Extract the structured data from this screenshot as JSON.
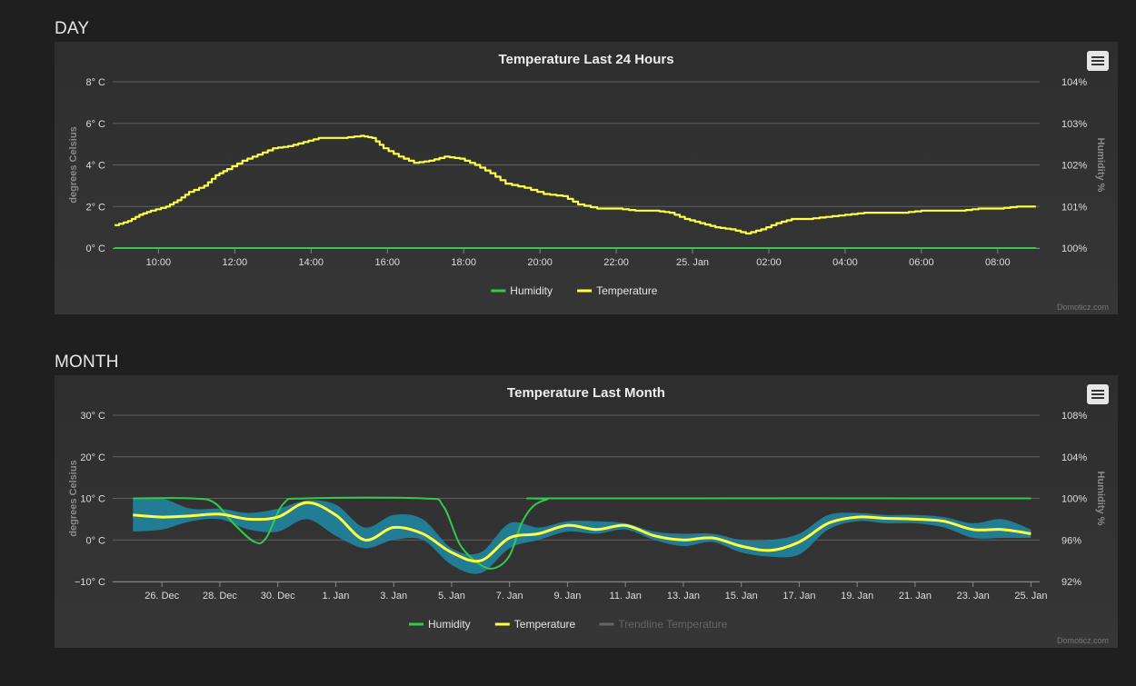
{
  "sections": {
    "day_label": "DAY",
    "month_label": "MONTH"
  },
  "credits": "Domoticz.com",
  "icons": {
    "menu": "hamburger-menu-icon"
  },
  "colors": {
    "humidity": "#33c94b",
    "temperature": "#ffff44",
    "trendline": "#666666",
    "range_band": "#1e8aa6"
  },
  "chart_data": [
    {
      "type": "line",
      "title": "Temperature Last 24 Hours",
      "ylabel": "degrees Celsius",
      "y2label": "Humidity %",
      "ylim": [
        0,
        8
      ],
      "y_ticks": [
        "0° C",
        "2° C",
        "4° C",
        "6° C",
        "8° C"
      ],
      "y2lim": [
        100,
        104
      ],
      "y2_ticks": [
        "100%",
        "101%",
        "102%",
        "103%",
        "104%"
      ],
      "xlim": [
        8.8,
        33.1
      ],
      "x_tick_hours": [
        10,
        12,
        14,
        16,
        18,
        20,
        22,
        24,
        26,
        28,
        30,
        32
      ],
      "x_ticks": [
        "10:00",
        "12:00",
        "14:00",
        "16:00",
        "18:00",
        "20:00",
        "22:00",
        "25. Jan",
        "02:00",
        "04:00",
        "06:00",
        "08:00"
      ],
      "legend": [
        "Humidity",
        "Temperature"
      ],
      "legend_position": "bottom-center",
      "series": [
        {
          "name": "Humidity",
          "x": [
            8.85,
            33.0
          ],
          "values": [
            100,
            100
          ]
        },
        {
          "name": "Temperature",
          "x": [
            8.85,
            9.2,
            9.5,
            9.8,
            10.2,
            10.5,
            10.8,
            11.2,
            11.5,
            11.8,
            12.2,
            12.6,
            13.0,
            13.4,
            13.8,
            14.2,
            14.8,
            15.3,
            15.6,
            15.9,
            16.3,
            16.7,
            17.1,
            17.5,
            17.9,
            18.3,
            18.7,
            19.1,
            19.6,
            20.1,
            20.6,
            21.0,
            21.5,
            22.0,
            22.5,
            23.0,
            23.4,
            23.8,
            24.2,
            24.6,
            25.0,
            25.4,
            25.8,
            26.2,
            26.6,
            27.0,
            27.5,
            28.0,
            28.5,
            29.0,
            29.5,
            30.0,
            30.5,
            31.0,
            31.5,
            32.0,
            32.5,
            33.0
          ],
          "values": [
            1.1,
            1.3,
            1.6,
            1.8,
            2.0,
            2.3,
            2.7,
            3.0,
            3.5,
            3.8,
            4.2,
            4.5,
            4.8,
            4.9,
            5.1,
            5.3,
            5.3,
            5.4,
            5.3,
            4.8,
            4.4,
            4.1,
            4.2,
            4.4,
            4.3,
            4.0,
            3.6,
            3.1,
            2.9,
            2.6,
            2.5,
            2.1,
            1.9,
            1.9,
            1.8,
            1.8,
            1.7,
            1.4,
            1.2,
            1.0,
            0.9,
            0.7,
            0.9,
            1.2,
            1.4,
            1.4,
            1.5,
            1.6,
            1.7,
            1.7,
            1.7,
            1.8,
            1.8,
            1.8,
            1.9,
            1.9,
            2.0,
            2.0
          ]
        }
      ]
    },
    {
      "type": "line",
      "title": "Temperature Last Month",
      "ylabel": "degrees Celsius",
      "y2label": "Humidity %",
      "ylim": [
        -10,
        30
      ],
      "y_ticks": [
        "−10° C",
        "0° C",
        "10° C",
        "20° C",
        "30° C"
      ],
      "y2lim": [
        92,
        108
      ],
      "y2_ticks": [
        "92%",
        "96%",
        "100%",
        "104%",
        "108%"
      ],
      "xlim": [
        24.3,
        56.3
      ],
      "x_tick_days": [
        26,
        28,
        30,
        32,
        34,
        36,
        38,
        40,
        42,
        44,
        46,
        48,
        50,
        52,
        54,
        56
      ],
      "x_ticks": [
        "26. Dec",
        "28. Dec",
        "30. Dec",
        "1. Jan",
        "3. Jan",
        "5. Jan",
        "7. Jan",
        "9. Jan",
        "11. Jan",
        "13. Jan",
        "15. Jan",
        "17. Jan",
        "19. Jan",
        "21. Jan",
        "23. Jan",
        "25. Jan"
      ],
      "legend": [
        "Humidity",
        "Temperature",
        "Trendline Temperature"
      ],
      "legend_position": "bottom-center",
      "series": [
        {
          "name": "Humidity",
          "x": [
            25,
            27,
            27.8,
            28.5,
            29.2,
            29.6,
            30.2,
            31,
            35,
            35.7,
            36.3,
            37,
            37.5,
            38,
            38.4,
            38.8,
            39.3,
            40,
            56
          ],
          "values": [
            100,
            100,
            99.6,
            97.5,
            95.8,
            96.2,
            99.5,
            100,
            100,
            99.3,
            95.5,
            93.6,
            93.3,
            94.5,
            97.5,
            99.2,
            99.9,
            100,
            100
          ]
        },
        {
          "name": "Temperature",
          "x": [
            25,
            26,
            27,
            28,
            29,
            30,
            31,
            32,
            33,
            34,
            35,
            36,
            37,
            38,
            39,
            40,
            41,
            42,
            43,
            44,
            45,
            46,
            47,
            48,
            49,
            50,
            51,
            52,
            53,
            54,
            55,
            56
          ],
          "values": [
            6,
            5.5,
            5.8,
            6.2,
            5.0,
            5.5,
            9.0,
            6.0,
            0.0,
            3.0,
            1.5,
            -3.0,
            -5.0,
            0.5,
            1.5,
            3.5,
            2.5,
            3.5,
            1.0,
            0.0,
            0.5,
            -1.5,
            -2.5,
            -0.5,
            4.0,
            5.5,
            5.2,
            5.0,
            4.5,
            2.5,
            2.5,
            1.5
          ]
        },
        {
          "name": "Temperature range",
          "x": [
            25,
            26,
            27,
            28,
            29,
            30,
            31,
            32,
            33,
            34,
            35,
            36,
            37,
            38,
            39,
            40,
            41,
            42,
            43,
            44,
            45,
            46,
            47,
            48,
            49,
            50,
            51,
            52,
            53,
            54,
            55,
            56
          ],
          "high": [
            10,
            10,
            7.5,
            7.5,
            6.5,
            7.5,
            9.5,
            8.5,
            3.0,
            6.0,
            5.0,
            -2.0,
            -3.0,
            4.0,
            3.0,
            4.5,
            4.5,
            4.0,
            2.0,
            1.5,
            1.5,
            0.0,
            0.0,
            1.5,
            6.0,
            6.5,
            6.0,
            6.0,
            5.5,
            4.0,
            5.0,
            2.5
          ],
          "low": [
            2,
            2.5,
            4.5,
            5.0,
            2.5,
            2.0,
            5.0,
            1.0,
            -2.0,
            0.0,
            0.0,
            -6.0,
            -8.0,
            -2.0,
            0.0,
            2.0,
            1.5,
            2.5,
            0.0,
            -1.5,
            -0.5,
            -3.0,
            -4.0,
            -3.5,
            2.5,
            4.5,
            4.0,
            4.0,
            3.0,
            0.5,
            0.5,
            0.5
          ]
        }
      ]
    }
  ]
}
